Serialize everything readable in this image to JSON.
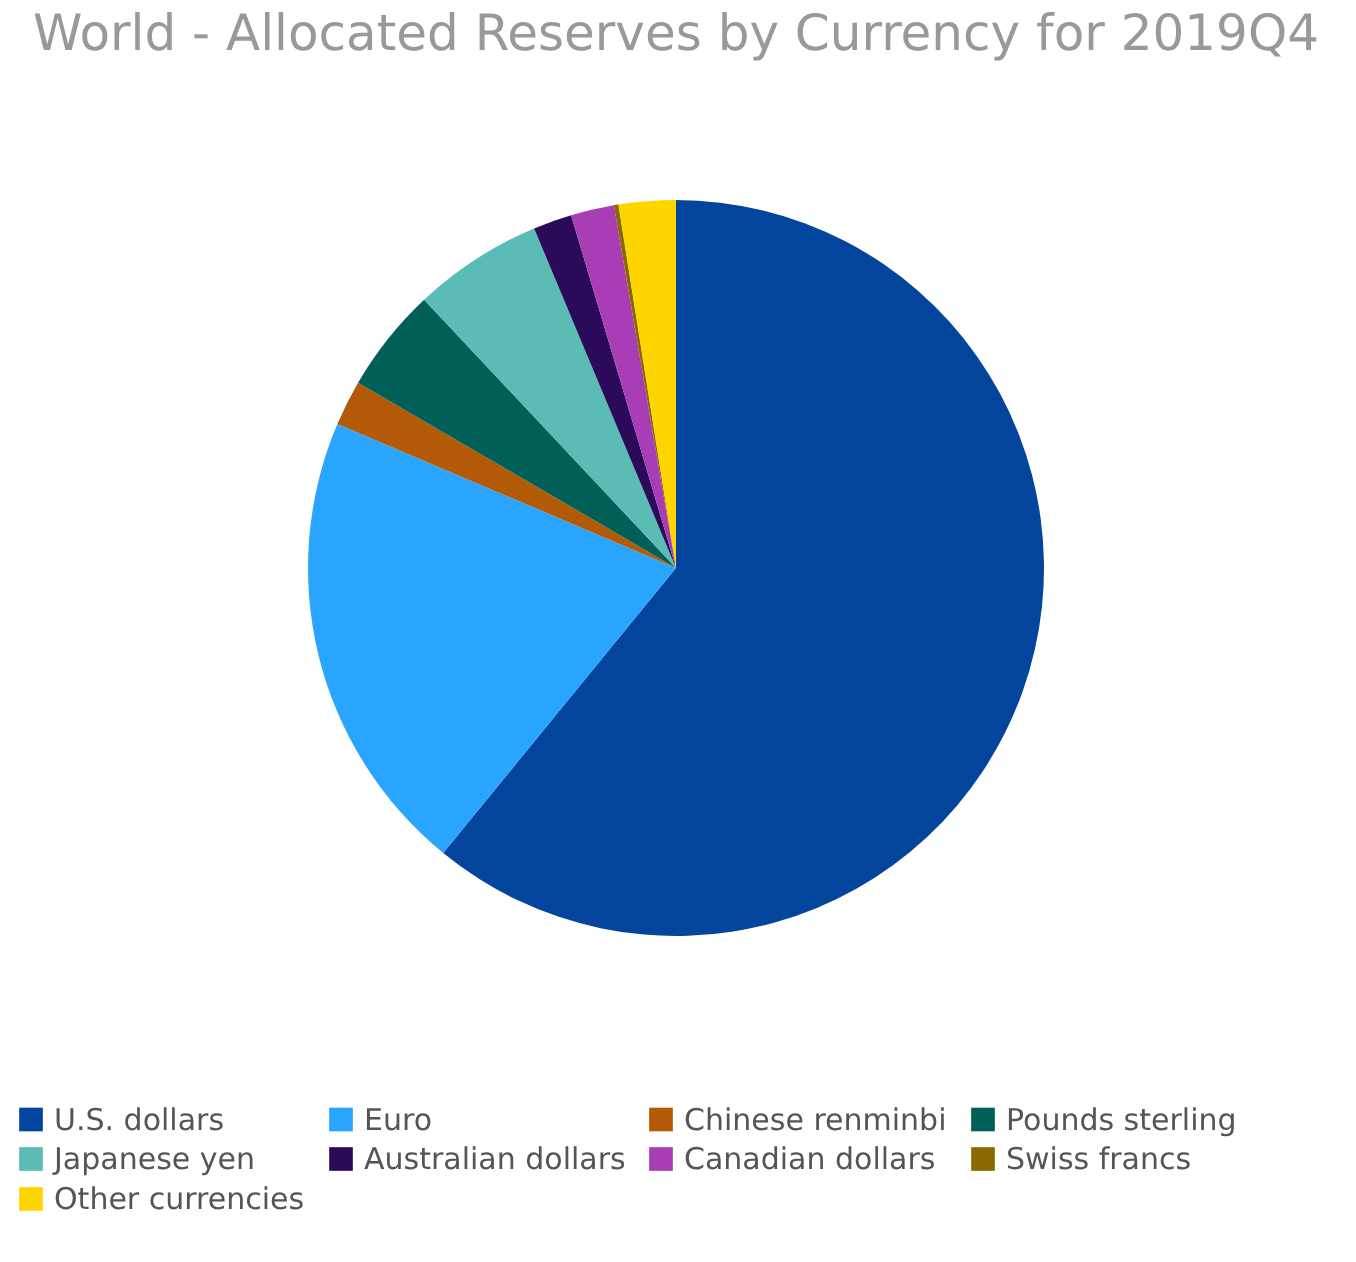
{
  "chart_data": {
    "type": "pie",
    "title": "World - Allocated Reserves by Currency for 2019Q4",
    "categories": [
      "U.S. dollars",
      "Euro",
      "Chinese renminbi",
      "Pounds sterling",
      "Japanese yen",
      "Australian dollars",
      "Canadian dollars",
      "Swiss francs",
      "Other currencies"
    ],
    "values": [
      60.9,
      20.5,
      2.0,
      4.6,
      5.7,
      1.7,
      1.9,
      0.2,
      2.5
    ],
    "colors": [
      "#03449c",
      "#2aa5ff",
      "#b35a06",
      "#006058",
      "#5bbcb5",
      "#2c0a5a",
      "#a83db6",
      "#8a6a00",
      "#ffd500"
    ],
    "legend": "bottom"
  }
}
